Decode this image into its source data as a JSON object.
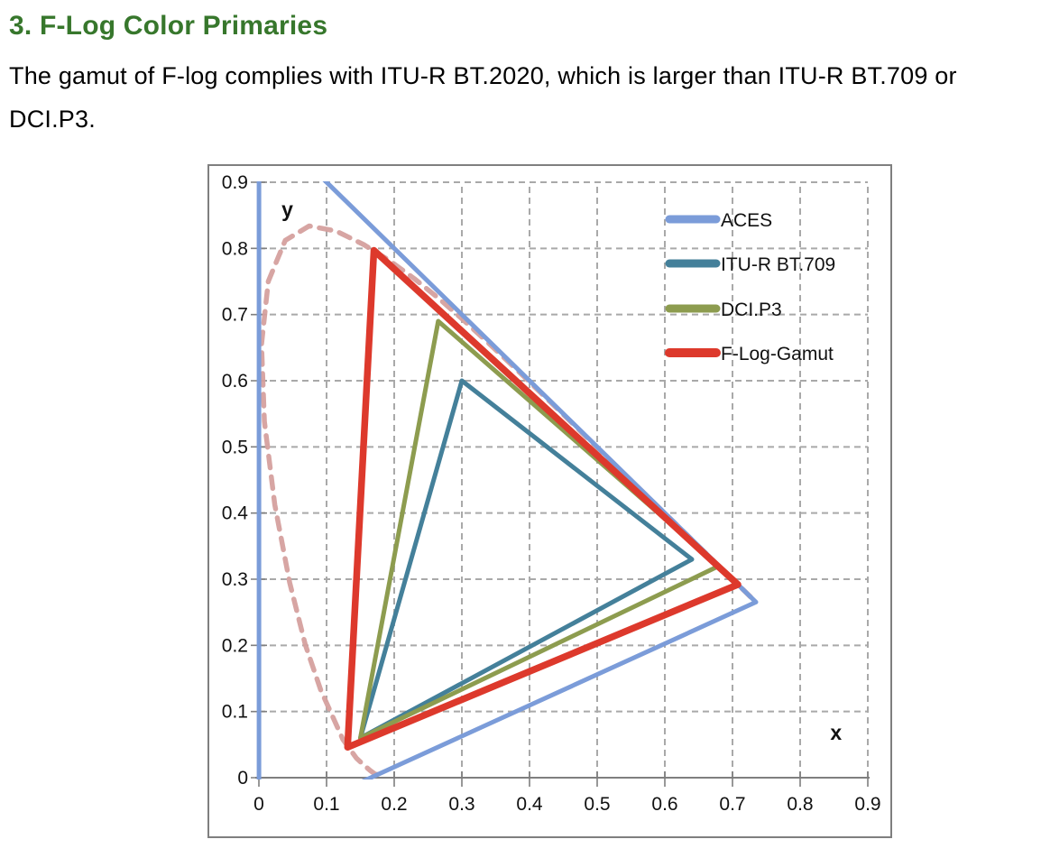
{
  "heading": "3. F-Log Color Primaries",
  "paragraph_lines": [
    "The gamut of F-log complies with ITU-R BT.2020, which is larger than ITU-R BT.709 or",
    "DCI.P3."
  ],
  "colors": {
    "heading": "#37772C",
    "body_text": "#000000",
    "grid": "#A9A9A9",
    "frame": "#7F7F7F",
    "axis": "#7F7F7F",
    "tick_text": "#111111",
    "legend_text": "#111111"
  },
  "chart_data": {
    "type": "line",
    "title": "",
    "description": "CIE 1931 xy chromaticity diagram comparing color gamuts",
    "xlabel": "x",
    "ylabel": "y",
    "xlabel_at": [
      0.853,
      0.057
    ],
    "ylabel_at": [
      0.042,
      0.848
    ],
    "xlim": [
      0,
      0.9
    ],
    "ylim": [
      0,
      0.9
    ],
    "xticks": [
      "0",
      "0.1",
      "0.2",
      "0.3",
      "0.4",
      "0.5",
      "0.6",
      "0.7",
      "0.8",
      "0.9"
    ],
    "yticks": [
      "0",
      "0.1",
      "0.2",
      "0.3",
      "0.4",
      "0.5",
      "0.6",
      "0.7",
      "0.8",
      "0.9"
    ],
    "grid": "dashed",
    "legend_position": "top-right",
    "series": [
      {
        "name": "ACES",
        "color": "#7B9CD9",
        "width": 5,
        "points": [
          [
            0.7347,
            0.2653
          ],
          [
            0.0001,
            1.0
          ],
          [
            0.0001,
            -0.077
          ],
          [
            0.7347,
            0.2653
          ]
        ]
      },
      {
        "name": "ITU-R BT.709",
        "color": "#44809A",
        "width": 5,
        "points": [
          [
            0.64,
            0.33
          ],
          [
            0.3,
            0.6
          ],
          [
            0.15,
            0.06
          ],
          [
            0.64,
            0.33
          ]
        ]
      },
      {
        "name": "DCI.P3",
        "color": "#8D9C4F",
        "width": 5,
        "points": [
          [
            0.68,
            0.32
          ],
          [
            0.265,
            0.69
          ],
          [
            0.15,
            0.06
          ],
          [
            0.68,
            0.32
          ]
        ]
      },
      {
        "name": "F-Log-Gamut",
        "color": "#DD392C",
        "width": 7.5,
        "points": [
          [
            0.708,
            0.292
          ],
          [
            0.17,
            0.797
          ],
          [
            0.131,
            0.046
          ],
          [
            0.708,
            0.292
          ]
        ]
      }
    ],
    "spectral_locus": {
      "name": "CIE 1931 spectral locus",
      "color": "#D5A09E",
      "dashed": true,
      "width": 5.5,
      "points": [
        [
          0.1741,
          0.005
        ],
        [
          0.1726,
          0.0048
        ],
        [
          0.1644,
          0.0109
        ],
        [
          0.1566,
          0.0177
        ],
        [
          0.144,
          0.0297
        ],
        [
          0.1241,
          0.0578
        ],
        [
          0.0913,
          0.1327
        ],
        [
          0.0687,
          0.2007
        ],
        [
          0.0454,
          0.295
        ],
        [
          0.0235,
          0.4127
        ],
        [
          0.0082,
          0.5384
        ],
        [
          0.0039,
          0.6548
        ],
        [
          0.0139,
          0.7502
        ],
        [
          0.0389,
          0.812
        ],
        [
          0.0743,
          0.8338
        ],
        [
          0.1142,
          0.8262
        ],
        [
          0.1547,
          0.8059
        ],
        [
          0.1929,
          0.7816
        ],
        [
          0.2296,
          0.7543
        ],
        [
          0.2658,
          0.7243
        ],
        [
          0.3016,
          0.6923
        ],
        [
          0.3373,
          0.6589
        ],
        [
          0.3731,
          0.6245
        ],
        [
          0.4087,
          0.5896
        ],
        [
          0.4441,
          0.5547
        ],
        [
          0.4788,
          0.5202
        ],
        [
          0.5125,
          0.4866
        ],
        [
          0.5448,
          0.4544
        ],
        [
          0.5752,
          0.4242
        ],
        [
          0.6029,
          0.3965
        ],
        [
          0.627,
          0.3725
        ],
        [
          0.6482,
          0.3514
        ],
        [
          0.6658,
          0.334
        ],
        [
          0.6915,
          0.3083
        ],
        [
          0.7079,
          0.292
        ],
        [
          0.719,
          0.2809
        ],
        [
          0.726,
          0.274
        ],
        [
          0.7334,
          0.2666
        ],
        [
          0.7347,
          0.2653
        ]
      ]
    }
  }
}
